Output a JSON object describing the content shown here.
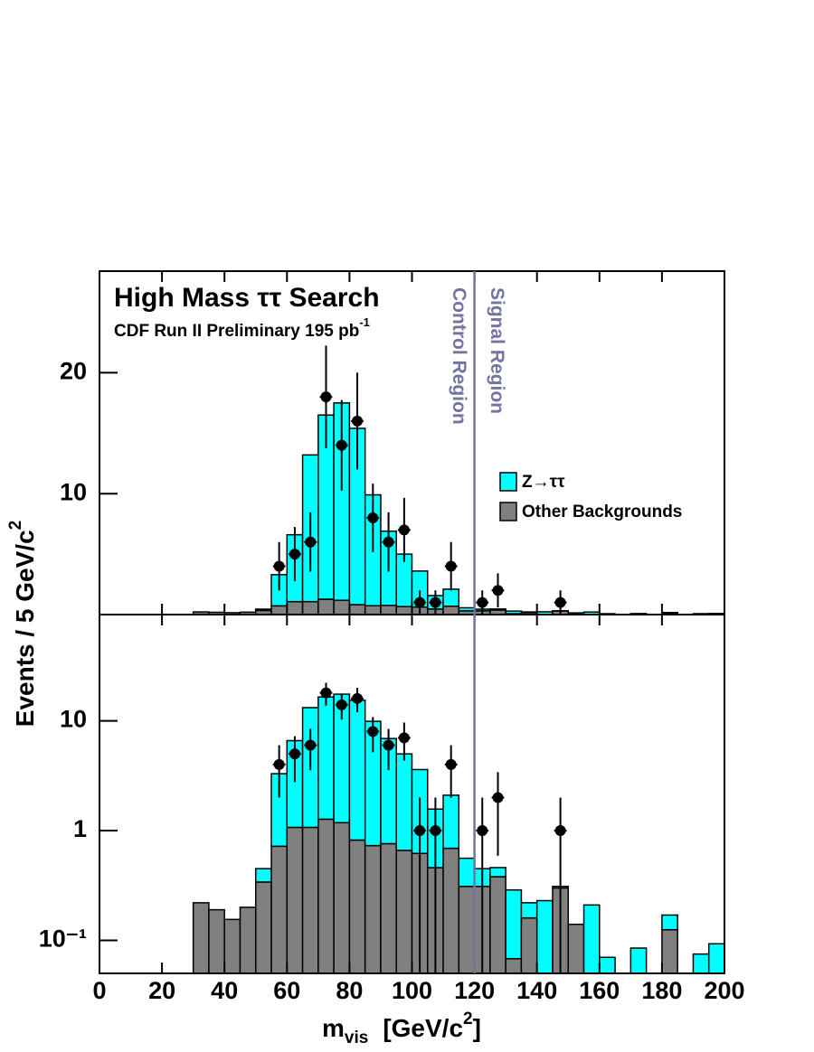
{
  "chart_data": {
    "type": "histogram",
    "title": "High Mass ττ Search",
    "subtitle": {
      "text": "CDF Run II Preliminary 195 pb",
      "sup": "-1"
    },
    "ylabel": {
      "text": "Events / 5 GeV/c",
      "sup": "2"
    },
    "xlabel": {
      "main": "m",
      "sub": "vis",
      "unit": "[GeV/c",
      "sup": "2",
      "close": "]"
    },
    "xlim": [
      0,
      200
    ],
    "xticks": [
      0,
      20,
      40,
      60,
      80,
      100,
      120,
      140,
      160,
      180,
      200
    ],
    "bins": [
      30,
      35,
      40,
      45,
      50,
      55,
      60,
      65,
      70,
      75,
      80,
      85,
      90,
      95,
      100,
      105,
      110,
      115,
      120,
      125,
      130,
      135,
      140,
      145,
      150,
      155,
      160,
      165,
      170,
      175,
      180,
      185,
      190,
      195,
      200
    ],
    "series": [
      {
        "name": "Other Backgrounds",
        "color": "#808080",
        "values": [
          0.22,
          0.19,
          0.155,
          0.2,
          0.34,
          0.72,
          1.07,
          1.07,
          1.27,
          1.18,
          0.82,
          0.73,
          0.76,
          0.66,
          0.62,
          0.46,
          0.69,
          0.31,
          0.31,
          0.38,
          0.068,
          0.16,
          0,
          0.3,
          0.14,
          0,
          0,
          0,
          0,
          0,
          0.125,
          0,
          0,
          0
        ]
      },
      {
        "name": "Z→ττ",
        "color": "#00ffff",
        "values": [
          0,
          0,
          0,
          0,
          0.11,
          2.58,
          5.53,
          12.13,
          15.23,
          16.32,
          14.58,
          9.17,
          6.14,
          4.34,
          2.98,
          1.11,
          1.41,
          0.25,
          0.14,
          0.08,
          0.22,
          0.06,
          0.23,
          0.01,
          0,
          0.21,
          0.07,
          0,
          0.085,
          0,
          0.045,
          0,
          0.075,
          0.093
        ]
      }
    ],
    "data": {
      "color": "#000000",
      "x": [
        57.5,
        62.5,
        67.5,
        72.5,
        77.5,
        82.5,
        87.5,
        92.5,
        97.5,
        102.5,
        107.5,
        112.5,
        122.5,
        127.5,
        147.5
      ],
      "values": [
        4,
        5,
        6,
        18,
        14,
        16,
        8,
        6,
        7,
        1,
        1,
        4,
        1,
        2,
        1
      ],
      "errors": [
        2,
        2.24,
        2.45,
        4.24,
        3.74,
        4,
        2.83,
        2.45,
        2.65,
        1,
        1,
        2,
        1,
        1.41,
        1
      ]
    },
    "divider": {
      "x": 120,
      "color": "#7474a0",
      "labels": [
        "Control  Region",
        "Signal  Region"
      ]
    },
    "panels": [
      {
        "yscale": "linear",
        "ylim": [
          0,
          28.4
        ],
        "yticks": [
          10,
          20
        ]
      },
      {
        "yscale": "log",
        "ylim": [
          0.05,
          93
        ],
        "yticks": [
          {
            "value": 0.1,
            "label": "10⁻¹"
          },
          1,
          10
        ]
      }
    ]
  }
}
